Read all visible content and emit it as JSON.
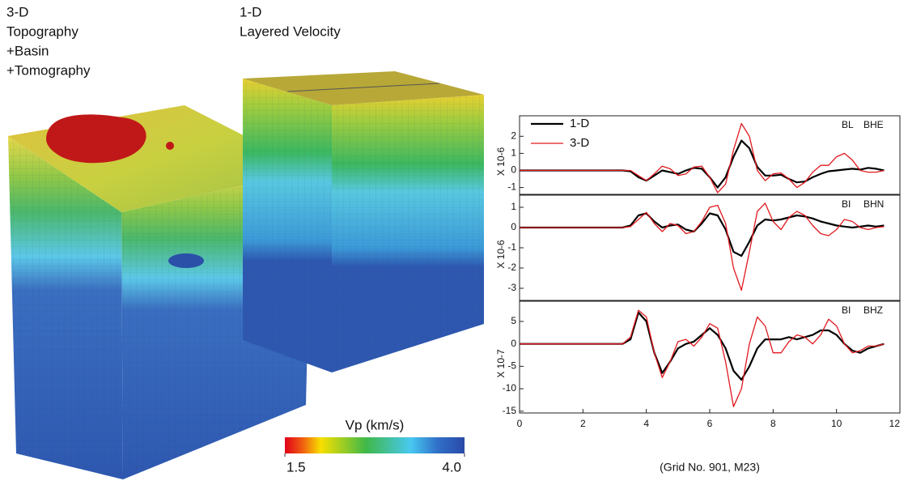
{
  "model_labels": {
    "three_d": [
      "3-D",
      "Topography",
      "+Basin",
      "+Tomography"
    ],
    "one_d": [
      "1-D",
      "Layered Velocity"
    ]
  },
  "colorbar": {
    "title": "Vp (km/s)",
    "lim": [
      1.5,
      4
    ],
    "ticks": [
      1.5,
      {
        "value": 4,
        "label": "4.0"
      }
    ]
  },
  "chart_data": [
    {
      "type": "line",
      "ylabel": "X 10-6",
      "station": "BL",
      "component": "BHE",
      "legend": "upper left",
      "x": [
        0,
        0.25,
        0.5,
        0.75,
        1,
        1.25,
        1.5,
        1.75,
        2,
        2.25,
        2.5,
        2.75,
        3,
        3.25,
        3.5,
        3.75,
        4,
        4.25,
        4.5,
        4.75,
        5,
        5.25,
        5.5,
        5.75,
        6,
        6.25,
        6.5,
        6.75,
        7,
        7.25,
        7.5,
        7.75,
        8,
        8.25,
        8.5,
        8.75,
        9,
        9.25,
        9.5,
        9.75,
        10,
        10.25,
        10.5,
        10.75,
        11,
        11.25,
        11.5
      ],
      "xlim": [
        0,
        12
      ],
      "ylim": [
        -1.4,
        3.2
      ],
      "yticks": [
        -1,
        0,
        1,
        2
      ],
      "series": [
        {
          "name": "1-D",
          "color": "#000000",
          "values": [
            0,
            0,
            0,
            0,
            0,
            0,
            0,
            0,
            0,
            0,
            0,
            0,
            0,
            0,
            -0.05,
            -0.4,
            -0.6,
            -0.3,
            0,
            -0.1,
            -0.2,
            0,
            0.15,
            0.1,
            -0.4,
            -1,
            -0.4,
            0.8,
            1.75,
            1.3,
            0.2,
            -0.3,
            -0.3,
            -0.25,
            -0.5,
            -0.7,
            -0.65,
            -0.4,
            -0.2,
            -0.05,
            0,
            0.05,
            0.1,
            0.05,
            0.15,
            0.1,
            0
          ]
        },
        {
          "name": "3-D",
          "color": "#e0191e",
          "values": [
            0,
            0,
            0,
            0,
            0,
            0,
            0,
            0,
            0,
            0,
            0,
            0,
            0,
            0,
            0,
            -0.3,
            -0.6,
            -0.2,
            0.25,
            0.1,
            -0.3,
            -0.2,
            0.2,
            0.25,
            -0.4,
            -1.3,
            -0.8,
            1.2,
            2.75,
            2,
            0,
            -0.6,
            -0.2,
            -0.15,
            -0.5,
            -1,
            -0.7,
            -0.1,
            0.3,
            0.3,
            0.8,
            1,
            0.6,
            0,
            -0.1,
            -0.1,
            0
          ]
        }
      ]
    },
    {
      "type": "line",
      "ylabel": "X 10-6",
      "station": "BI",
      "component": "BHN",
      "x": [
        0,
        0.25,
        0.5,
        0.75,
        1,
        1.25,
        1.5,
        1.75,
        2,
        2.25,
        2.5,
        2.75,
        3,
        3.25,
        3.5,
        3.75,
        4,
        4.25,
        4.5,
        4.75,
        5,
        5.25,
        5.5,
        5.75,
        6,
        6.25,
        6.5,
        6.75,
        7,
        7.25,
        7.5,
        7.75,
        8,
        8.25,
        8.5,
        8.75,
        9,
        9.25,
        9.5,
        9.75,
        10,
        10.25,
        10.5,
        10.75,
        11,
        11.25,
        11.5
      ],
      "xlim": [
        0,
        12
      ],
      "ylim": [
        -3.6,
        1.6
      ],
      "yticks": [
        -3,
        -2,
        -1,
        0,
        1
      ],
      "series": [
        {
          "color": "#000000",
          "values": [
            0,
            0,
            0,
            0,
            0,
            0,
            0,
            0,
            0,
            0,
            0,
            0,
            0,
            0,
            0.1,
            0.6,
            0.7,
            0.3,
            0,
            0.1,
            0.15,
            -0.1,
            -0.2,
            0.2,
            0.7,
            0.6,
            -0.1,
            -1.2,
            -1.4,
            -0.7,
            0.1,
            0.4,
            0.35,
            0.4,
            0.5,
            0.6,
            0.55,
            0.45,
            0.3,
            0.2,
            0.1,
            0.05,
            0,
            0.05,
            0.1,
            0.05,
            0.1
          ]
        },
        {
          "color": "#e0191e",
          "values": [
            0,
            0,
            0,
            0,
            0,
            0,
            0,
            0,
            0,
            0,
            0,
            0,
            0,
            0,
            0.05,
            0.4,
            0.75,
            0.2,
            -0.2,
            0.2,
            0.1,
            -0.3,
            -0.2,
            0.3,
            1,
            1.1,
            0.2,
            -2,
            -3.1,
            -1.2,
            0.8,
            1.2,
            0.3,
            -0.1,
            0.5,
            0.8,
            0.6,
            0.1,
            -0.3,
            -0.4,
            -0.1,
            0.4,
            0.3,
            0,
            -0.1,
            0,
            0.05
          ]
        }
      ]
    },
    {
      "type": "line",
      "ylabel": "X 10-7",
      "station": "BI",
      "component": "BHZ",
      "xlabel": "(Grid No. 901, M23)",
      "x": [
        0,
        0.25,
        0.5,
        0.75,
        1,
        1.25,
        1.5,
        1.75,
        2,
        2.25,
        2.5,
        2.75,
        3,
        3.25,
        3.5,
        3.75,
        4,
        4.25,
        4.5,
        4.75,
        5,
        5.25,
        5.5,
        5.75,
        6,
        6.25,
        6.5,
        6.75,
        7,
        7.25,
        7.5,
        7.75,
        8,
        8.25,
        8.5,
        8.75,
        9,
        9.25,
        9.5,
        9.75,
        10,
        10.25,
        10.5,
        10.75,
        11,
        11.25,
        11.5
      ],
      "xlim": [
        0,
        12
      ],
      "xticks": [
        0,
        2,
        4,
        6,
        8,
        10,
        12
      ],
      "ylim": [
        -15.4,
        9.5
      ],
      "yticks": [
        -15,
        -10,
        -5,
        0,
        5
      ],
      "series": [
        {
          "color": "#000000",
          "values": [
            0,
            0,
            0,
            0,
            0,
            0,
            0,
            0,
            0,
            0,
            0,
            0,
            0,
            0,
            1,
            7,
            5,
            -2,
            -6.5,
            -4,
            -1,
            0,
            0.5,
            2,
            3.5,
            2,
            -1,
            -6,
            -8,
            -5,
            -1,
            1,
            1,
            1,
            1.5,
            1,
            1.5,
            2,
            3,
            3,
            2,
            0,
            -1.5,
            -2,
            -1,
            -0.5,
            0
          ]
        },
        {
          "color": "#e0191e",
          "values": [
            0,
            0,
            0,
            0,
            0,
            0,
            0,
            0,
            0,
            0,
            0,
            0,
            0,
            0,
            1.5,
            7.5,
            6,
            -2,
            -7.5,
            -4,
            0.5,
            1,
            -0.5,
            1.5,
            4.5,
            3.5,
            -4,
            -14,
            -10,
            0,
            6,
            4,
            -2,
            -2,
            0.5,
            2,
            1.5,
            0,
            2,
            5.5,
            4,
            0,
            -2,
            -1.5,
            -0.5,
            -0.5,
            0
          ]
        }
      ]
    }
  ]
}
